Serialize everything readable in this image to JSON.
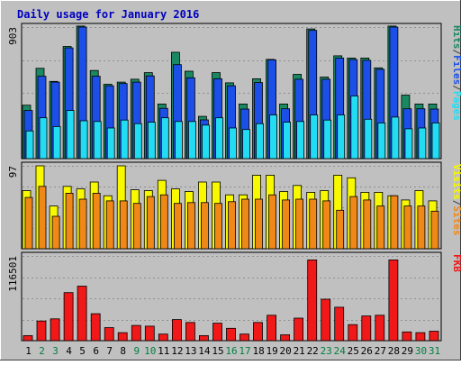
{
  "chart_data": {
    "type": "bar",
    "title": "Daily usage for January 2016",
    "days": [
      "1",
      "2",
      "3",
      "4",
      "5",
      "6",
      "7",
      "8",
      "9",
      "10",
      "11",
      "12",
      "13",
      "14",
      "15",
      "16",
      "17",
      "18",
      "19",
      "20",
      "21",
      "22",
      "23",
      "24",
      "25",
      "26",
      "27",
      "28",
      "29",
      "30",
      "31"
    ],
    "weekend_days": [
      "2",
      "3",
      "9",
      "10",
      "16",
      "17",
      "23",
      "24",
      "30",
      "31"
    ],
    "panels": [
      {
        "id": "hits-files-pages",
        "max_label": "903",
        "ymax": 903,
        "series": [
          {
            "name": "Hits",
            "color": "#1a8860",
            "values": [
              367,
              620,
              530,
              770,
              910,
              605,
              510,
              525,
              545,
              590,
              375,
              730,
              600,
              290,
              590,
              520,
              375,
              548,
              681,
              375,
              578,
              890,
              560,
              706,
              690,
              690,
              623,
              910,
              436,
              375,
              375
            ]
          },
          {
            "name": "Files",
            "color": "#1c4ee8",
            "values": [
              330,
              565,
              525,
              760,
              903,
              565,
              500,
              515,
              525,
              568,
              345,
              645,
              555,
              266,
              548,
              500,
              340,
              522,
              678,
              342,
              545,
              880,
              545,
              690,
              680,
              675,
              613,
              903,
              342,
              342,
              340
            ]
          },
          {
            "name": "Pages",
            "color": "#22dcf4",
            "values": [
              190,
              280,
              220,
              330,
              260,
              255,
              210,
              265,
              240,
              250,
              280,
              255,
              255,
              230,
              280,
              210,
              200,
              240,
              300,
              250,
              255,
              300,
              265,
              300,
              430,
              270,
              245,
              285,
              205,
              210,
              245
            ]
          }
        ],
        "legend_labels": [
          "Pages",
          "/",
          "Files",
          "/",
          "Hits"
        ],
        "legend_colors": [
          "#22dcf4",
          "#404040",
          "#1c4ee8",
          "#404040",
          "#1a8860"
        ]
      },
      {
        "id": "visits-sites",
        "max_label": "97",
        "ymax": 97,
        "series": [
          {
            "name": "Visits",
            "color": "#f8f800",
            "values": [
              68,
              97,
              50,
              73,
              70,
              78,
              62,
              97,
              69,
              68,
              80,
              70,
              67,
              78,
              78,
              63,
              63,
              86,
              86,
              67,
              74,
              66,
              68,
              86,
              83,
              66,
              66,
              62,
              57,
              68,
              56
            ]
          },
          {
            "name": "Sites",
            "color": "#f08818",
            "values": [
              60,
              73,
              38,
              65,
              58,
              65,
              56,
              56,
              53,
              61,
              63,
              53,
              54,
              54,
              53,
              55,
              58,
              58,
              63,
              57,
              58,
              58,
              56,
              45,
              61,
              57,
              50,
              62,
              50,
              50,
              44
            ]
          }
        ],
        "legend_labels": [
          "Sites",
          "/",
          "Visits"
        ],
        "legend_colors": [
          "#f08818",
          "#404040",
          "#f8f800"
        ]
      },
      {
        "id": "kbytes",
        "max_label": "116501",
        "ymax": 116501,
        "series": [
          {
            "name": "KBytes",
            "color": "#f01818",
            "values": [
              7000,
              27000,
              30000,
              66000,
              75000,
              37000,
              18000,
              11000,
              21000,
              20000,
              9000,
              29000,
              25000,
              7000,
              24000,
              17000,
              9000,
              25000,
              35000,
              8000,
              31000,
              111000,
              57000,
              46000,
              22000,
              34000,
              35000,
              111000,
              12000,
              11000,
              13000
            ]
          }
        ],
        "legend_labels": [
          "KB",
          "F"
        ],
        "legend_colors": [
          "#f01818",
          "#f01818"
        ]
      }
    ]
  }
}
